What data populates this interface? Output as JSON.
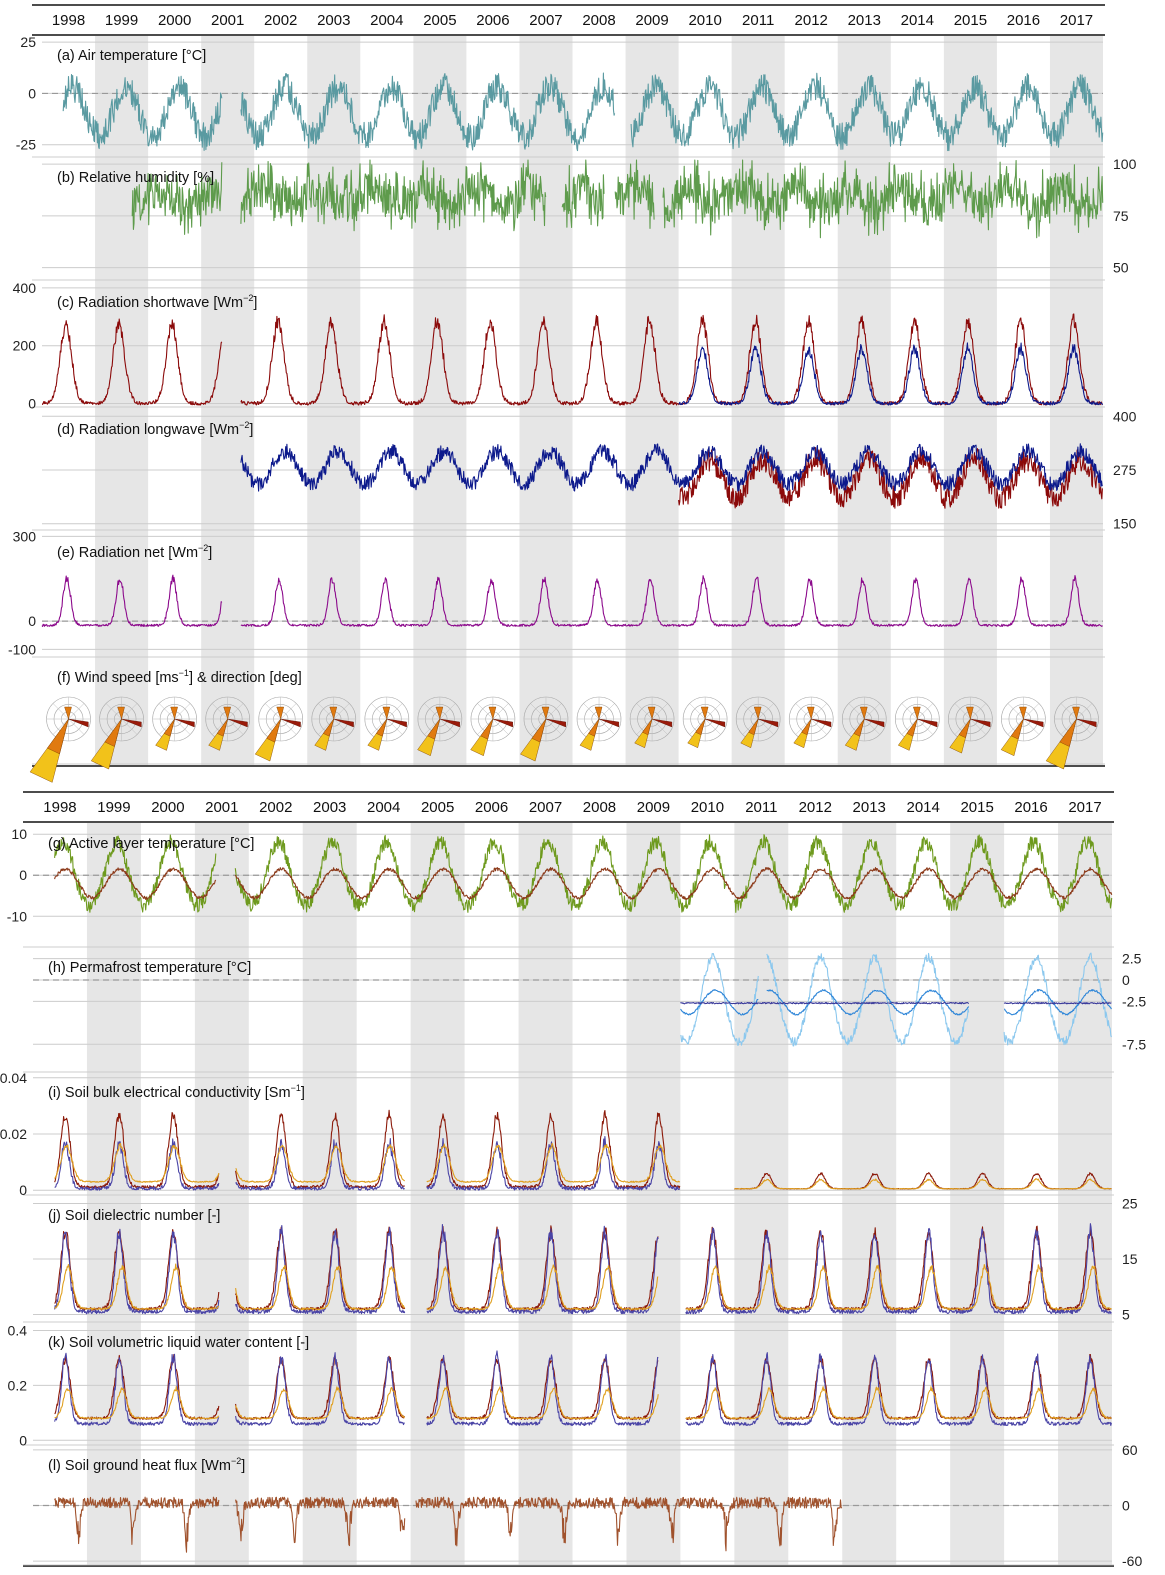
{
  "years": [
    "1998",
    "1999",
    "2000",
    "2001",
    "2002",
    "2003",
    "2004",
    "2005",
    "2006",
    "2007",
    "2008",
    "2009",
    "2010",
    "2011",
    "2012",
    "2013",
    "2014",
    "2015",
    "2016",
    "2017"
  ],
  "colors": {
    "shade": "#e6e6e6",
    "grid": "#cccccc",
    "zero_line": "#999999",
    "axis": "#111111",
    "air_temperature": "#5a9aa1",
    "relative_humidity": "#5e9b4c",
    "red_series": "#8b0a0a",
    "blue_series": "#0d1a8c",
    "net_radiation": "#8c0a8c",
    "active_layer_green": "#6e9a1e",
    "active_layer_brown": "#8c3a1a",
    "permafrost_light": "#8cc8ee",
    "permafrost_mid": "#2f86d8",
    "permafrost_dark": "#3a3a9a",
    "soil_red": "#8b1a0a",
    "soil_blue": "#4a44a6",
    "soil_orange": "#e0a020",
    "heat_flux": "#a0522d",
    "rose_yellow": "#f2c21a",
    "rose_orange": "#e07a10",
    "rose_red": "#9a1a0a"
  },
  "chart_data": [
    {
      "id": "a",
      "type": "line",
      "title": "(a) Air temperature [°C]",
      "ticks_left": [
        "25",
        "0",
        "-25"
      ],
      "tick_values_left": [
        25,
        0,
        -25
      ],
      "ylim": [
        -30,
        27
      ],
      "zero_line": true,
      "series": [
        {
          "color_key": "air_temperature",
          "kind": "seasonal",
          "period": [
            1998.4,
            2001.4
          ],
          "mean": -9,
          "amplitude": 12,
          "noise": 7,
          "phase": 0.58,
          "gaps": []
        },
        {
          "color_key": "air_temperature",
          "kind": "seasonal",
          "period": [
            2001.75,
            2018.0
          ],
          "mean": -9,
          "amplitude": 12,
          "noise": 7,
          "phase": 0.58,
          "gaps": [
            [
              2008.8,
              2009.1
            ]
          ]
        }
      ]
    },
    {
      "id": "b",
      "type": "line",
      "title": "(b) Relative humidity [%]",
      "ticks_right": [
        "100",
        "75",
        "50"
      ],
      "tick_values_right": [
        100,
        75,
        50
      ],
      "ylim": [
        45,
        102
      ],
      "series": [
        {
          "color_key": "relative_humidity",
          "kind": "noisy",
          "period": [
            1999.7,
            2001.4
          ],
          "mean": 84,
          "amplitude": 4,
          "noise": 9,
          "phase": 0.2,
          "gaps": []
        },
        {
          "color_key": "relative_humidity",
          "kind": "noisy",
          "period": [
            2001.75,
            2018.0
          ],
          "mean": 84,
          "amplitude": 4,
          "noise": 9,
          "phase": 0.2,
          "gaps": [
            [
              2007.5,
              2007.8
            ],
            [
              2008.6,
              2008.8
            ],
            [
              2009.55,
              2009.7
            ]
          ]
        }
      ]
    },
    {
      "id": "c",
      "type": "line",
      "title": "(c) Radiation shortwave [Wm",
      "title_sup": "−2",
      "title_end": "]",
      "ticks_left": [
        "400",
        "200",
        "0"
      ],
      "tick_values_left": [
        400,
        200,
        0
      ],
      "ylim": [
        -5,
        410
      ],
      "series": [
        {
          "color_key": "red_series",
          "kind": "pulse",
          "period": [
            1998.0,
            2001.4
          ],
          "base": 0,
          "peak": 250,
          "noise": 40,
          "center": 0.45,
          "width": 0.15,
          "gaps": []
        },
        {
          "color_key": "red_series",
          "kind": "pulse",
          "period": [
            2001.75,
            2018.0
          ],
          "base": 0,
          "peak": 260,
          "noise": 45,
          "center": 0.45,
          "width": 0.15,
          "gaps": []
        },
        {
          "color_key": "blue_series",
          "kind": "pulse",
          "period": [
            2010.0,
            2018.0
          ],
          "base": 0,
          "peak": 170,
          "noise": 35,
          "center": 0.45,
          "width": 0.14,
          "gaps": []
        }
      ]
    },
    {
      "id": "d",
      "type": "line",
      "title": "(d) Radiation longwave [Wm",
      "title_sup": "−2",
      "title_end": "]",
      "ticks_right": [
        "400",
        "275",
        "150"
      ],
      "tick_values_right": [
        400,
        275,
        150
      ],
      "ylim": [
        140,
        410
      ],
      "series": [
        {
          "color_key": "red_series",
          "kind": "seasonal",
          "period": [
            2010.0,
            2018.0
          ],
          "mean": 255,
          "amplitude": 45,
          "noise": 28,
          "phase": 0.58,
          "gaps": []
        },
        {
          "color_key": "blue_series",
          "kind": "seasonal",
          "period": [
            2001.75,
            2018.0
          ],
          "mean": 280,
          "amplitude": 38,
          "noise": 18,
          "phase": 0.58,
          "gaps": []
        }
      ]
    },
    {
      "id": "e",
      "type": "line",
      "title": "(e) Radiation net [Wm",
      "title_sup": "−2",
      "title_end": "]",
      "ticks_left": [
        "300",
        "0",
        "-100"
      ],
      "tick_values_left": [
        300,
        0,
        -100
      ],
      "ylim": [
        -120,
        305
      ],
      "zero_line": true,
      "series": [
        {
          "color_key": "net_radiation",
          "kind": "pulse",
          "period": [
            1998.0,
            2001.4
          ],
          "base": -15,
          "peak": 150,
          "noise": 25,
          "center": 0.47,
          "width": 0.1,
          "gaps": []
        },
        {
          "color_key": "net_radiation",
          "kind": "pulse",
          "period": [
            2001.75,
            2018.0
          ],
          "base": -15,
          "peak": 150,
          "noise": 25,
          "center": 0.47,
          "width": 0.1,
          "gaps": []
        }
      ]
    },
    {
      "id": "f",
      "type": "rose",
      "title": "(f) Wind speed [ms",
      "title_sup": "−1",
      "title_end": "] & direction [deg]",
      "sizes": [
        0.95,
        0.7,
        0.35,
        0.35,
        0.55,
        0.35,
        0.35,
        0.45,
        0.45,
        0.55,
        0.35,
        0.3,
        0.3,
        0.3,
        0.3,
        0.35,
        0.35,
        0.4,
        0.45,
        0.7
      ]
    },
    {
      "id": "g",
      "type": "line",
      "title": "(g) Active layer temperature [°C]",
      "ticks_left": [
        "10",
        "0",
        "-10"
      ],
      "tick_values_left": [
        10,
        0,
        -10
      ],
      "ylim": [
        -17,
        12
      ],
      "zero_line": true,
      "series": [
        {
          "color_key": "active_layer_green",
          "kind": "skewed",
          "period": [
            1998.4,
            2001.4
          ],
          "mean": -1,
          "amplitude": 7,
          "noise": 1.8,
          "phase": 0.55,
          "gaps": []
        },
        {
          "color_key": "active_layer_green",
          "kind": "skewed",
          "period": [
            2001.75,
            2018.0
          ],
          "mean": -1,
          "amplitude": 7,
          "noise": 1.8,
          "phase": 0.55,
          "gaps": [
            [
              2010.85,
              2011.0
            ]
          ]
        },
        {
          "color_key": "active_layer_brown",
          "kind": "seasonal",
          "period": [
            1998.4,
            2001.4
          ],
          "mean": -2,
          "amplitude": 3.5,
          "noise": 0.4,
          "phase": 0.6,
          "gaps": []
        },
        {
          "color_key": "active_layer_brown",
          "kind": "seasonal",
          "period": [
            2001.75,
            2018.0
          ],
          "mean": -2,
          "amplitude": 3.5,
          "noise": 0.4,
          "phase": 0.6,
          "gaps": []
        }
      ]
    },
    {
      "id": "h",
      "type": "line",
      "title": "(h) Permafrost temperature [°C]",
      "ticks_right": [
        "2.5",
        "0",
        "-2.5",
        "-7.5"
      ],
      "tick_values_right": [
        2.5,
        0,
        -2.5,
        -7.5
      ],
      "ylim": [
        -10.5,
        3.5
      ],
      "zero_line": true,
      "series": [
        {
          "color_key": "permafrost_light",
          "kind": "skewed",
          "period": [
            2010.0,
            2016.6
          ],
          "mean": -3.2,
          "amplitude": 4.5,
          "noise": 0.5,
          "phase": 0.6,
          "gaps": [
            [
              2011.45,
              2011.6
            ],
            [
              2015.35,
              2016.0
            ]
          ]
        },
        {
          "color_key": "permafrost_light",
          "kind": "skewed",
          "period": [
            2016.6,
            2018.0
          ],
          "mean": -3.2,
          "amplitude": 4.5,
          "noise": 0.5,
          "phase": 0.6,
          "gaps": []
        },
        {
          "color_key": "permafrost_mid",
          "kind": "seasonal",
          "period": [
            2010.0,
            2016.6
          ],
          "mean": -2.6,
          "amplitude": 1.4,
          "noise": 0.1,
          "phase": 0.65,
          "gaps": [
            [
              2011.45,
              2011.6
            ],
            [
              2015.35,
              2016.0
            ]
          ]
        },
        {
          "color_key": "permafrost_mid",
          "kind": "seasonal",
          "period": [
            2016.6,
            2018.0
          ],
          "mean": -2.6,
          "amplitude": 1.4,
          "noise": 0.1,
          "phase": 0.65,
          "gaps": []
        },
        {
          "color_key": "permafrost_dark",
          "kind": "flat",
          "period": [
            2010.0,
            2018.0
          ],
          "mean": -2.7,
          "noise": 0.08,
          "gaps": [
            [
              2015.35,
              2016.0
            ]
          ]
        }
      ]
    },
    {
      "id": "i",
      "type": "line",
      "title": "(i) Soil bulk electrical conductivity [Sm",
      "title_sup": "−1",
      "title_end": "]",
      "ticks_left": [
        "0.04",
        "0.02",
        "0"
      ],
      "tick_values_left": [
        0.04,
        0.02,
        0
      ],
      "ylim": [
        -0.001,
        0.041
      ],
      "series": [
        {
          "color_key": "soil_red",
          "kind": "pulse",
          "period": [
            1998.4,
            2010.0
          ],
          "base": 0.0012,
          "peak": 0.024,
          "noise": 0.003,
          "center": 0.6,
          "width": 0.12,
          "gaps": [
            [
              2001.45,
              2001.75
            ],
            [
              2004.9,
              2005.3
            ]
          ]
        },
        {
          "color_key": "soil_blue",
          "kind": "pulse",
          "period": [
            1998.4,
            2010.0
          ],
          "base": 0.0006,
          "peak": 0.014,
          "noise": 0.004,
          "center": 0.6,
          "width": 0.1,
          "gaps": [
            [
              2001.45,
              2001.75
            ],
            [
              2004.9,
              2005.3
            ]
          ]
        },
        {
          "color_key": "soil_orange",
          "kind": "pulse",
          "period": [
            1998.4,
            2010.0
          ],
          "base": 0.003,
          "peak": 0.012,
          "noise": 0.0015,
          "center": 0.62,
          "width": 0.14,
          "gaps": [
            [
              2001.45,
              2001.75
            ],
            [
              2004.9,
              2005.3
            ]
          ]
        },
        {
          "color_key": "soil_red",
          "kind": "pulse",
          "period": [
            2011.0,
            2018.0
          ],
          "base": 0.0005,
          "peak": 0.005,
          "noise": 0.0008,
          "center": 0.6,
          "width": 0.12,
          "gaps": []
        },
        {
          "color_key": "soil_orange",
          "kind": "pulse",
          "period": [
            2011.0,
            2018.0
          ],
          "base": 0.0005,
          "peak": 0.003,
          "noise": 0.0006,
          "center": 0.6,
          "width": 0.12,
          "gaps": []
        }
      ]
    },
    {
      "id": "j",
      "type": "line",
      "title": "(j) Soil dielectric number [-]",
      "ticks_right": [
        "25",
        "15",
        "5"
      ],
      "tick_values_right": [
        25,
        15,
        5
      ],
      "ylim": [
        4,
        26
      ],
      "series": [
        {
          "color_key": "soil_red",
          "kind": "pulse",
          "period": [
            1998.4,
            2018.0
          ],
          "base": 6,
          "peak": 13,
          "noise": 1.8,
          "center": 0.6,
          "width": 0.12,
          "gaps": [
            [
              2001.45,
              2001.75
            ],
            [
              2004.9,
              2005.3
            ],
            [
              2009.6,
              2010.1
            ]
          ]
        },
        {
          "color_key": "soil_blue",
          "kind": "pulse",
          "period": [
            1998.4,
            2018.0
          ],
          "base": 5.5,
          "peak": 13,
          "noise": 2.5,
          "center": 0.6,
          "width": 0.1,
          "gaps": [
            [
              2001.45,
              2001.75
            ],
            [
              2004.9,
              2005.3
            ],
            [
              2009.6,
              2010.1
            ]
          ]
        },
        {
          "color_key": "soil_orange",
          "kind": "pulse",
          "period": [
            1998.4,
            2018.0
          ],
          "base": 6,
          "peak": 7,
          "noise": 1.0,
          "center": 0.65,
          "width": 0.12,
          "gaps": [
            [
              2001.45,
              2001.75
            ],
            [
              2004.9,
              2005.3
            ],
            [
              2009.6,
              2010.1
            ]
          ]
        }
      ]
    },
    {
      "id": "k",
      "type": "line",
      "title": "(k) Soil volumetric liquid water content [-]",
      "ticks_left": [
        "0.4",
        "0.2",
        "0"
      ],
      "tick_values_left": [
        0.4,
        0.2,
        0
      ],
      "ylim": [
        -0.01,
        0.42
      ],
      "series": [
        {
          "color_key": "soil_red",
          "kind": "pulse",
          "period": [
            1998.4,
            2018.0
          ],
          "base": 0.08,
          "peak": 0.2,
          "noise": 0.03,
          "center": 0.6,
          "width": 0.12,
          "gaps": [
            [
              2001.45,
              2001.75
            ],
            [
              2004.9,
              2005.3
            ],
            [
              2009.6,
              2010.1
            ]
          ]
        },
        {
          "color_key": "soil_blue",
          "kind": "pulse",
          "period": [
            1998.4,
            2018.0
          ],
          "base": 0.06,
          "peak": 0.22,
          "noise": 0.04,
          "center": 0.6,
          "width": 0.1,
          "gaps": [
            [
              2001.45,
              2001.75
            ],
            [
              2004.9,
              2005.3
            ],
            [
              2009.6,
              2010.1
            ]
          ]
        },
        {
          "color_key": "soil_orange",
          "kind": "pulse",
          "period": [
            1998.4,
            2018.0
          ],
          "base": 0.08,
          "peak": 0.1,
          "noise": 0.015,
          "center": 0.65,
          "width": 0.12,
          "gaps": [
            [
              2001.45,
              2001.75
            ],
            [
              2004.9,
              2005.3
            ],
            [
              2009.6,
              2010.1
            ]
          ]
        }
      ]
    },
    {
      "id": "l",
      "type": "line",
      "title": "(l) Soil ground heat flux [Wm",
      "title_sup": "−2",
      "title_end": "]",
      "ticks_right": [
        "60",
        "0",
        "-60"
      ],
      "tick_values_right": [
        60,
        0,
        -60
      ],
      "ylim": [
        -62,
        62
      ],
      "zero_line": true,
      "series": [
        {
          "color_key": "heat_flux",
          "kind": "dip",
          "period": [
            1998.4,
            2013.0
          ],
          "base": 3,
          "depth": -35,
          "noise": 6,
          "center": 0.85,
          "gaps": [
            [
              2001.45,
              2001.75
            ],
            [
              2004.9,
              2005.1
            ]
          ]
        }
      ]
    }
  ]
}
